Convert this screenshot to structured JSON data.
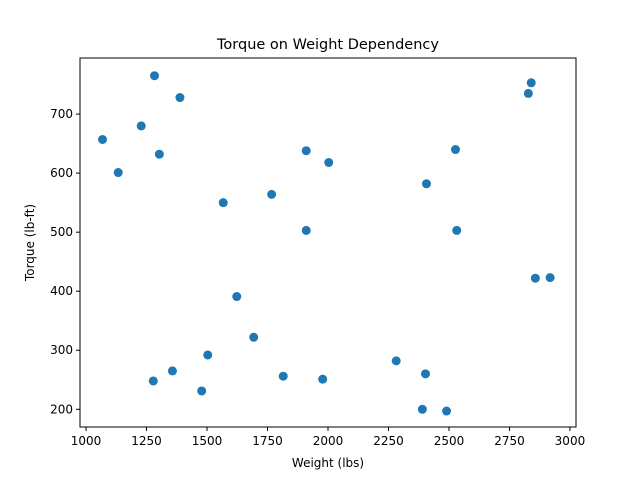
{
  "chart_data": {
    "type": "scatter",
    "title": "Torque on Weight Dependency",
    "xlabel": "Weight (lbs)",
    "ylabel": "Torque (lb-ft)",
    "xlim": [
      975,
      3025
    ],
    "ylim": [
      170,
      795
    ],
    "xticks": [
      1000,
      1250,
      1500,
      1750,
      2000,
      2250,
      2500,
      2750,
      3000
    ],
    "yticks": [
      200,
      300,
      400,
      500,
      600,
      700
    ],
    "grid": false,
    "marker_color": "#1f77b4",
    "points": [
      {
        "x": 1068,
        "y": 657
      },
      {
        "x": 1133,
        "y": 601
      },
      {
        "x": 1228,
        "y": 680
      },
      {
        "x": 1283,
        "y": 765
      },
      {
        "x": 1303,
        "y": 632
      },
      {
        "x": 1388,
        "y": 728
      },
      {
        "x": 1567,
        "y": 550
      },
      {
        "x": 1767,
        "y": 564
      },
      {
        "x": 1910,
        "y": 638
      },
      {
        "x": 2003,
        "y": 618
      },
      {
        "x": 1910,
        "y": 503
      },
      {
        "x": 2407,
        "y": 582
      },
      {
        "x": 2527,
        "y": 640
      },
      {
        "x": 2532,
        "y": 503
      },
      {
        "x": 2828,
        "y": 735
      },
      {
        "x": 2840,
        "y": 753
      },
      {
        "x": 2857,
        "y": 422
      },
      {
        "x": 2918,
        "y": 423
      },
      {
        "x": 1623,
        "y": 391
      },
      {
        "x": 1693,
        "y": 322
      },
      {
        "x": 1503,
        "y": 292
      },
      {
        "x": 1357,
        "y": 265
      },
      {
        "x": 1278,
        "y": 248
      },
      {
        "x": 1478,
        "y": 231
      },
      {
        "x": 1815,
        "y": 256
      },
      {
        "x": 1978,
        "y": 251
      },
      {
        "x": 2282,
        "y": 282
      },
      {
        "x": 2403,
        "y": 260
      },
      {
        "x": 2390,
        "y": 200
      },
      {
        "x": 2490,
        "y": 197
      }
    ]
  }
}
